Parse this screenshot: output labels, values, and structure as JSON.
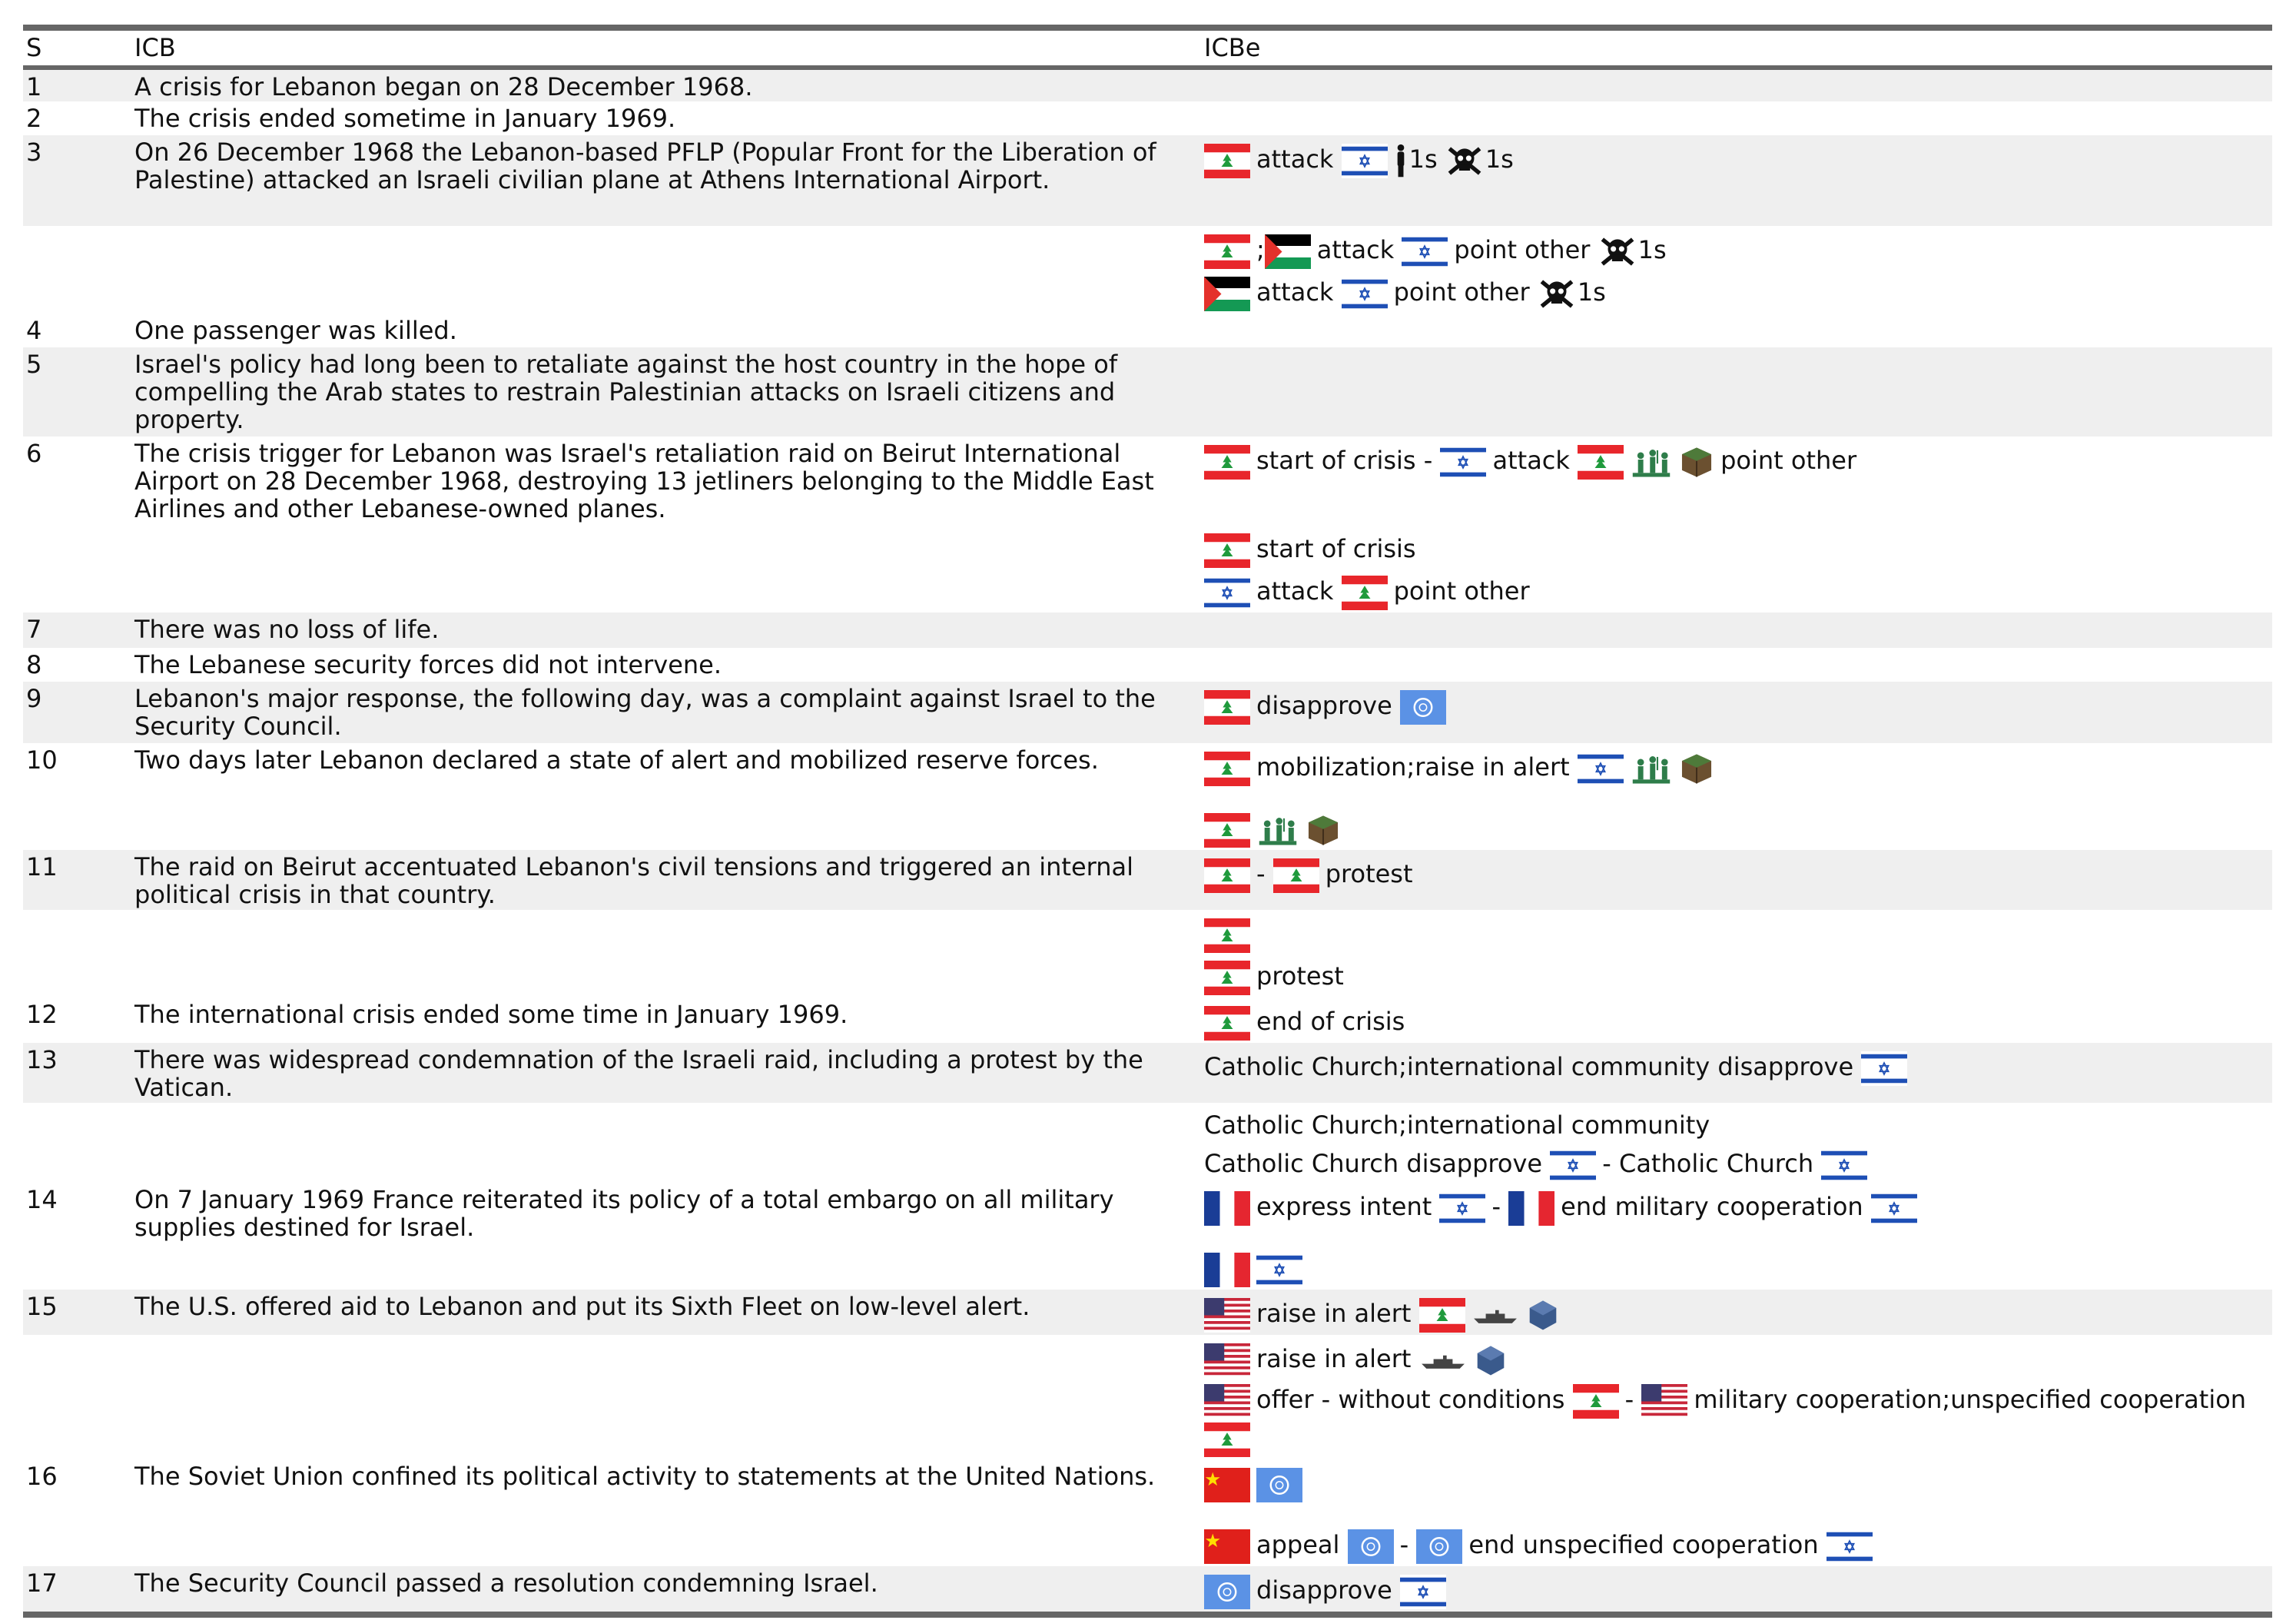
{
  "table": {
    "headers": [
      "S",
      "ICB",
      "ICBe"
    ],
    "rows": [
      {
        "s": "1",
        "icb": "A crisis for Lebanon began on 28 December 1968."
      },
      {
        "s": "2",
        "icb": "The crisis ended sometime in January 1969."
      },
      {
        "s": "3",
        "icb": "On 26 December 1968 the Lebanon-based PFLP (Popular Front for the Liberation of Palestine) attacked an Israeli civilian plane at Athens International Airport.",
        "icbe": [
          "attack",
          "1s",
          "1s"
        ]
      },
      {
        "icbe": [
          ";",
          "attack",
          "point other",
          "1s",
          "attack",
          "point other",
          "1s"
        ]
      },
      {
        "s": "4",
        "icb": "One passenger was killed."
      },
      {
        "s": "5",
        "icb": "Israel's policy had long been to retaliate against the host country in the hope of compelling the Arab states to restrain Palestinian attacks on Israeli citizens and property."
      },
      {
        "s": "6",
        "icb": "The crisis trigger for Lebanon was Israel's retaliation raid on Beirut International Airport on 28 December 1968, destroying 13 jetliners belonging to the Middle East Airlines and other Lebanese-owned planes.",
        "icbe": [
          "start of crisis -",
          "attack",
          "point other",
          "start of crisis",
          "attack",
          "point other"
        ]
      },
      {
        "s": "7",
        "icb": "There was no loss of life."
      },
      {
        "s": "8",
        "icb": "The Lebanese security forces did not intervene."
      },
      {
        "s": "9",
        "icb": "Lebanon's major response, the following day, was a complaint against Israel to the Security Council.",
        "icbe": [
          "disapprove"
        ]
      },
      {
        "s": "10",
        "icb": "Two days later Lebanon declared a state of alert and mobilized reserve forces.",
        "icbe": [
          "mobilization;raise in alert"
        ]
      },
      {
        "s": "11",
        "icb": "The raid on Beirut accentuated Lebanon's civil tensions and triggered an internal political crisis in that country.",
        "icbe": [
          "-",
          "protest"
        ]
      },
      {
        "icbe": [
          "protest"
        ]
      },
      {
        "s": "12",
        "icb": "The international crisis ended some time in January 1969.",
        "icbe": [
          "end of crisis"
        ]
      },
      {
        "s": "13",
        "icb": "There was widespread condemnation of the Israeli raid, including a protest by the Vatican.",
        "icbe": [
          "Catholic Church;international community disapprove"
        ]
      },
      {
        "icbe": [
          "Catholic Church;international community",
          "Catholic Church disapprove",
          "- Catholic Church"
        ]
      },
      {
        "s": "14",
        "icb": "On 7 January 1969 France reiterated its policy of a total embargo on all military supplies destined for Israel.",
        "icbe": [
          "express intent",
          "-",
          "end military cooperation"
        ]
      },
      {
        "s": "15",
        "icb": "The U.S. offered aid to Lebanon and put its Sixth Fleet on low-level alert.",
        "icbe": [
          "raise in alert"
        ]
      },
      {
        "icbe": [
          "raise in alert",
          "offer - without conditions",
          "-",
          "military cooperation;unspecified cooperation"
        ]
      },
      {
        "s": "16",
        "icb": "The Soviet Union confined its political activity to statements at the United Nations.",
        "icbe": [
          "appeal",
          "-",
          "end unspecified cooperation"
        ]
      },
      {
        "s": "17",
        "icb": "The Security Council passed a resolution condemning Israel.",
        "icbe": [
          "disapprove"
        ]
      }
    ]
  }
}
